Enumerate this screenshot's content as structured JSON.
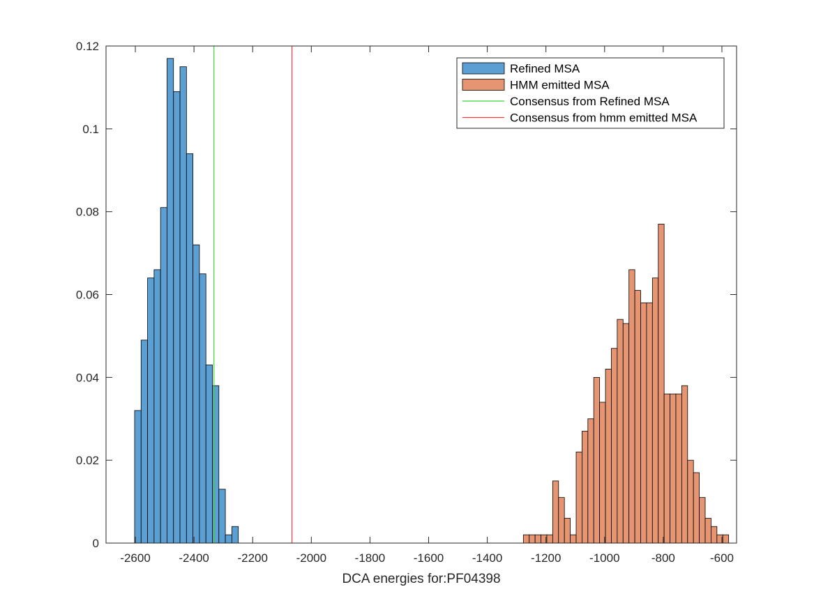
{
  "chart_data": {
    "type": "bar",
    "xlabel": "DCA energies for:PF04398",
    "ylabel": "",
    "xlim": [
      -2700,
      -550
    ],
    "ylim": [
      0,
      0.12
    ],
    "xticks": [
      -2600,
      -2400,
      -2200,
      -2000,
      -1800,
      -1600,
      -1400,
      -1200,
      -1000,
      -800,
      -600
    ],
    "yticks": [
      0,
      0.02,
      0.04,
      0.06,
      0.08,
      0.1,
      0.12
    ],
    "ytick_labels": [
      "0",
      "0.02",
      "0.04",
      "0.06",
      "0.08",
      "0.1",
      "0.12"
    ],
    "legend_position": "top-right",
    "grid": false,
    "series": [
      {
        "name": "Refined MSA",
        "kind": "histogram",
        "color": "#5b9fd3",
        "bin_edges": [
          -2602.5,
          -2580.4,
          -2558.3,
          -2536.2,
          -2514.1,
          -2492.0,
          -2469.9,
          -2447.8,
          -2425.7,
          -2403.6,
          -2381.5,
          -2359.4,
          -2337.3,
          -2315.2,
          -2293.1,
          -2271.0,
          -2248.9
        ],
        "values": [
          0.032,
          0.049,
          0.064,
          0.066,
          0.081,
          0.117,
          0.109,
          0.115,
          0.094,
          0.072,
          0.065,
          0.043,
          0.038,
          0.013,
          0.002,
          0.004
        ]
      },
      {
        "name": "HMM emitted MSA",
        "kind": "histogram",
        "color": "#e59572",
        "bin_edges": [
          -1277,
          -1257,
          -1237,
          -1217,
          -1197,
          -1177,
          -1157,
          -1137,
          -1117,
          -1097,
          -1077,
          -1057,
          -1037,
          -1017,
          -997,
          -977,
          -957,
          -937,
          -917,
          -897,
          -877,
          -857,
          -837,
          -817,
          -797,
          -777,
          -757,
          -737,
          -717,
          -697,
          -677,
          -657,
          -637,
          -617,
          -597,
          -577
        ],
        "values": [
          0.002,
          0.002,
          0.002,
          0.002,
          0.002,
          0.015,
          0.011,
          0.006,
          0.002,
          0.022,
          0.027,
          0.03,
          0.04,
          0.034,
          0.042,
          0.047,
          0.054,
          0.053,
          0.066,
          0.061,
          0.058,
          0.058,
          0.064,
          0.077,
          0.036,
          0.036,
          0.036,
          0.038,
          0.02,
          0.017,
          0.011,
          0.006,
          0.004,
          0.002,
          0.002
        ]
      },
      {
        "name": "Consensus from Refined MSA",
        "kind": "vline",
        "color": "#33d633",
        "x": -2332
      },
      {
        "name": "Consensus from hmm emitted MSA",
        "kind": "vline",
        "color": "#f03c3c",
        "x": -2066
      }
    ]
  }
}
